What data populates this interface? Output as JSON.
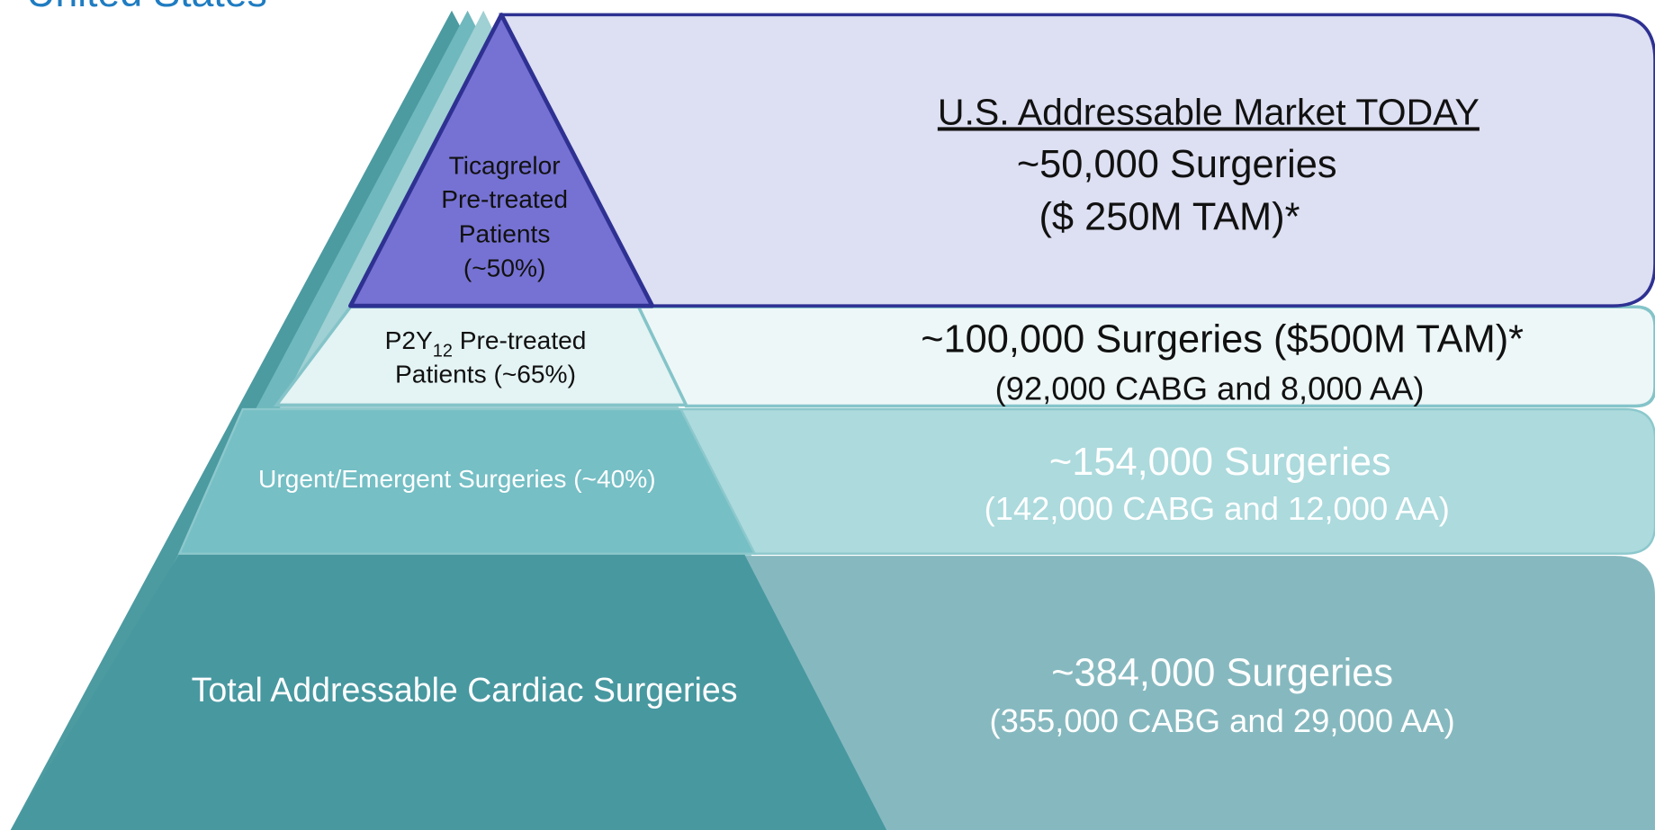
{
  "header": {
    "title": "United States"
  },
  "pyramid": {
    "levels": [
      {
        "label_lines": [
          "Ticagrelor",
          "Pre-treated",
          "Patients",
          "(~50%)"
        ],
        "panel": {
          "heading": "U.S. Addressable Market TODAY",
          "lines": [
            "~50,000 Surgeries",
            "($ 250M TAM)*"
          ]
        }
      },
      {
        "label_parts": [
          "P2Y",
          "12",
          " Pre-treated"
        ],
        "label_lines": [
          "Patients (~65%)"
        ],
        "panel": {
          "lines": [
            "~100,000 Surgeries ($500M TAM)*",
            "(92,000 CABG and 8,000 AA)"
          ]
        }
      },
      {
        "label_lines": [
          "Urgent/Emergent Surgeries (~40%)"
        ],
        "panel": {
          "lines": [
            "~154,000 Surgeries",
            "(142,000 CABG and 12,000 AA)"
          ]
        }
      },
      {
        "label_lines": [
          "Total Addressable Cardiac Surgeries"
        ],
        "panel": {
          "lines": [
            "~384,000 Surgeries",
            "(355,000 CABG and 29,000 AA)"
          ]
        }
      }
    ]
  }
}
